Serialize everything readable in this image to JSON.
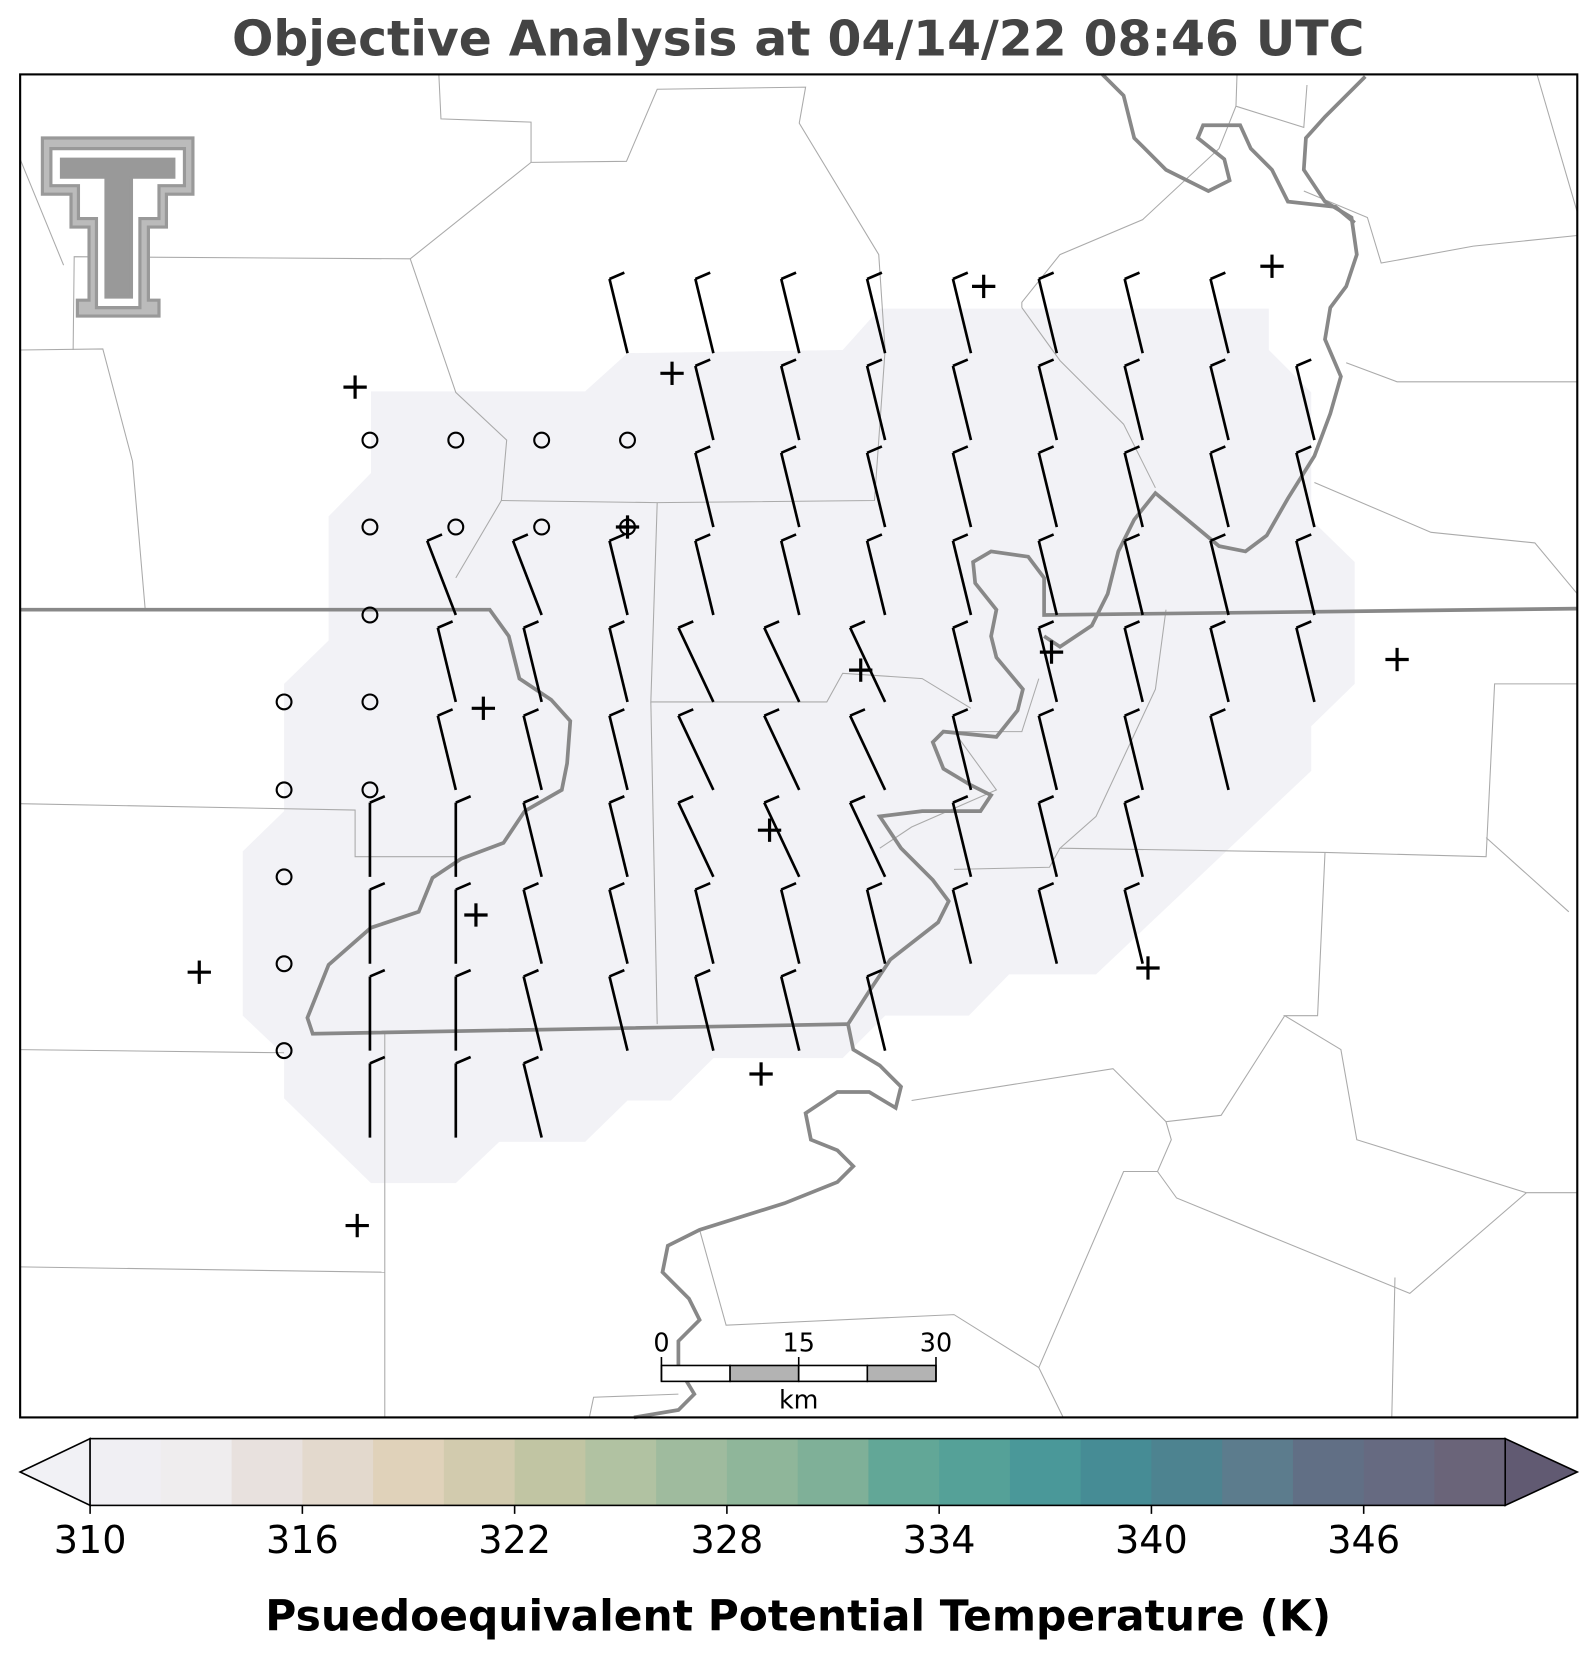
{
  "title": "Objective Analysis at 04/14/22 08:46 UTC",
  "scale_bar": {
    "ticks": [
      0,
      15,
      30
    ],
    "unit": "km"
  },
  "colorbar": {
    "label": "Psuedoequivalent Potential Temperature (K)",
    "range": [
      310,
      350
    ],
    "ticks": [
      310,
      316,
      322,
      328,
      334,
      340,
      346
    ],
    "colors": [
      "#f0eff3",
      "#efedee",
      "#e8e1de",
      "#e3d9cd",
      "#e0d2ba",
      "#d2cbae",
      "#c1c5a3",
      "#b1c2a2",
      "#9fbb9e",
      "#8fb69a",
      "#7fb098",
      "#62a797",
      "#55a198",
      "#4a9899",
      "#468c95",
      "#4d8390",
      "#5c7c8d",
      "#616f85",
      "#666a81",
      "#6a6479"
    ],
    "under_color": "#f1f1f5",
    "over_color": "#615a72"
  }
}
